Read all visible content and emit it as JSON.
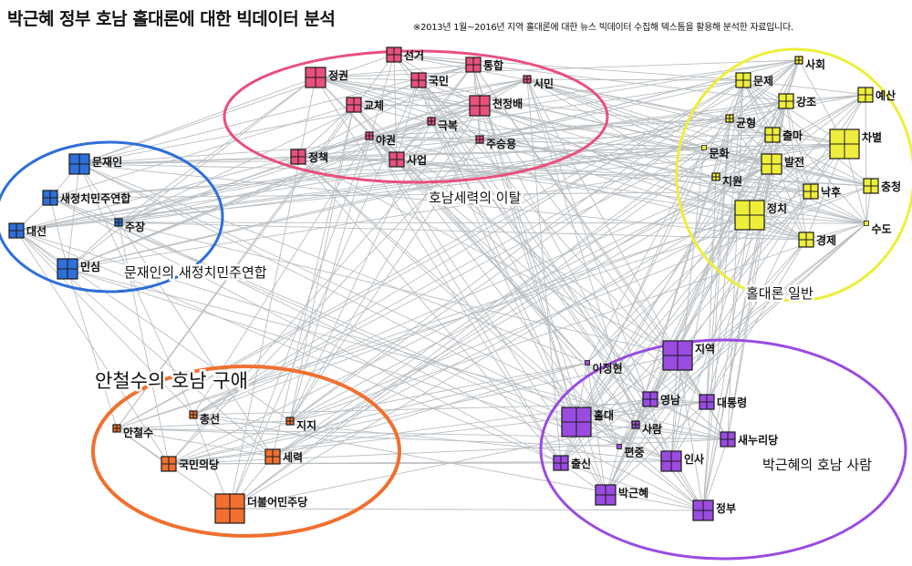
{
  "header": {
    "title": "박근혜 정부 호남 홀대론에 대한 빅데이터 분석",
    "note": "※2013년 1월~2016년 지역 홀대론에 대한 뉴스 빅데이터 수집해 텍스톰을 활용해 분석한 자료입니다."
  },
  "groups": [
    {
      "id": "pink",
      "label": "호남세력의 이탈",
      "color": "#e8507e"
    },
    {
      "id": "blue",
      "label": "문재인의 새정치민주연합",
      "color": "#2f6fd8"
    },
    {
      "id": "yellow",
      "label": "홀대론 일반",
      "color": "#eeee3a"
    },
    {
      "id": "orange",
      "label": "안철수의 호남 구애",
      "color": "#f07030"
    },
    {
      "id": "purple",
      "label": "박근혜의 호남 사람",
      "color": "#9a4be0"
    }
  ],
  "nodes": [
    {
      "label": "정권",
      "group": "pink",
      "weight": 3
    },
    {
      "label": "선거",
      "group": "pink",
      "weight": 2
    },
    {
      "label": "통합",
      "group": "pink",
      "weight": 2
    },
    {
      "label": "국민",
      "group": "pink",
      "weight": 2
    },
    {
      "label": "시민",
      "group": "pink",
      "weight": 1
    },
    {
      "label": "교체",
      "group": "pink",
      "weight": 2
    },
    {
      "label": "천정배",
      "group": "pink",
      "weight": 3
    },
    {
      "label": "극복",
      "group": "pink",
      "weight": 1
    },
    {
      "label": "야권",
      "group": "pink",
      "weight": 1
    },
    {
      "label": "주승용",
      "group": "pink",
      "weight": 1
    },
    {
      "label": "정책",
      "group": "pink",
      "weight": 2
    },
    {
      "label": "사업",
      "group": "pink",
      "weight": 2
    },
    {
      "label": "문재인",
      "group": "blue",
      "weight": 3
    },
    {
      "label": "새정치민주연합",
      "group": "blue",
      "weight": 2
    },
    {
      "label": "주장",
      "group": "blue",
      "weight": 1
    },
    {
      "label": "대선",
      "group": "blue",
      "weight": 2
    },
    {
      "label": "민심",
      "group": "blue",
      "weight": 3
    },
    {
      "label": "사회",
      "group": "yellow",
      "weight": 1
    },
    {
      "label": "문제",
      "group": "yellow",
      "weight": 2
    },
    {
      "label": "예산",
      "group": "yellow",
      "weight": 2
    },
    {
      "label": "강조",
      "group": "yellow",
      "weight": 2
    },
    {
      "label": "균형",
      "group": "yellow",
      "weight": 1
    },
    {
      "label": "출마",
      "group": "yellow",
      "weight": 2
    },
    {
      "label": "차별",
      "group": "yellow",
      "weight": 4
    },
    {
      "label": "문화",
      "group": "yellow",
      "weight": 0
    },
    {
      "label": "발전",
      "group": "yellow",
      "weight": 3
    },
    {
      "label": "지원",
      "group": "yellow",
      "weight": 1
    },
    {
      "label": "충청",
      "group": "yellow",
      "weight": 2
    },
    {
      "label": "낙후",
      "group": "yellow",
      "weight": 2
    },
    {
      "label": "정치",
      "group": "yellow",
      "weight": 4
    },
    {
      "label": "수도",
      "group": "yellow",
      "weight": 0
    },
    {
      "label": "경제",
      "group": "yellow",
      "weight": 2
    },
    {
      "label": "안철수",
      "group": "orange",
      "weight": 1
    },
    {
      "label": "총선",
      "group": "orange",
      "weight": 1
    },
    {
      "label": "지지",
      "group": "orange",
      "weight": 1
    },
    {
      "label": "국민의당",
      "group": "orange",
      "weight": 2
    },
    {
      "label": "세력",
      "group": "orange",
      "weight": 2
    },
    {
      "label": "더불어민주당",
      "group": "orange",
      "weight": 4
    },
    {
      "label": "지역",
      "group": "purple",
      "weight": 4
    },
    {
      "label": "이정현",
      "group": "purple",
      "weight": 0
    },
    {
      "label": "영남",
      "group": "purple",
      "weight": 2
    },
    {
      "label": "대통령",
      "group": "purple",
      "weight": 2
    },
    {
      "label": "홀대",
      "group": "purple",
      "weight": 4
    },
    {
      "label": "사람",
      "group": "purple",
      "weight": 1
    },
    {
      "label": "새누리당",
      "group": "purple",
      "weight": 2
    },
    {
      "label": "편중",
      "group": "purple",
      "weight": 0
    },
    {
      "label": "인사",
      "group": "purple",
      "weight": 3
    },
    {
      "label": "출신",
      "group": "purple",
      "weight": 2
    },
    {
      "label": "박근혜",
      "group": "purple",
      "weight": 3
    },
    {
      "label": "정부",
      "group": "purple",
      "weight": 3
    }
  ],
  "colors": {
    "edge": "#b9bec2",
    "node_stroke": "#1a1a1a",
    "text": "#111111"
  }
}
